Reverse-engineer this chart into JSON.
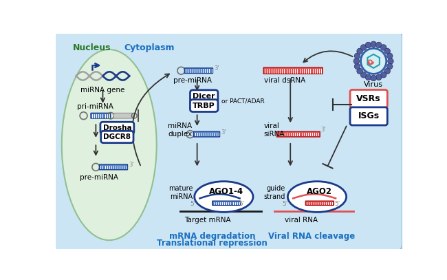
{
  "bg_outer": "#f2d8d8",
  "bg_cytoplasm": "#cce5f5",
  "bg_nucleus": "#dff0df",
  "nucleus_label": "Nucleus",
  "cytoplasm_label": "Cytoplasm",
  "virus_label": "Virus",
  "nucleus_label_color": "#2a7a2a",
  "cytoplasm_label_color": "#1a70c0",
  "title1": "mRNA degradation",
  "title2": "Translational repression",
  "title3": "Viral RNA cleavage",
  "title_color": "#1a70c0",
  "blue_dark": "#1a3a8a",
  "blue_mid": "#3a6abf",
  "red_mid": "#e04040",
  "gray_mid": "#909090",
  "black": "#1a1a1a",
  "white": "#ffffff"
}
